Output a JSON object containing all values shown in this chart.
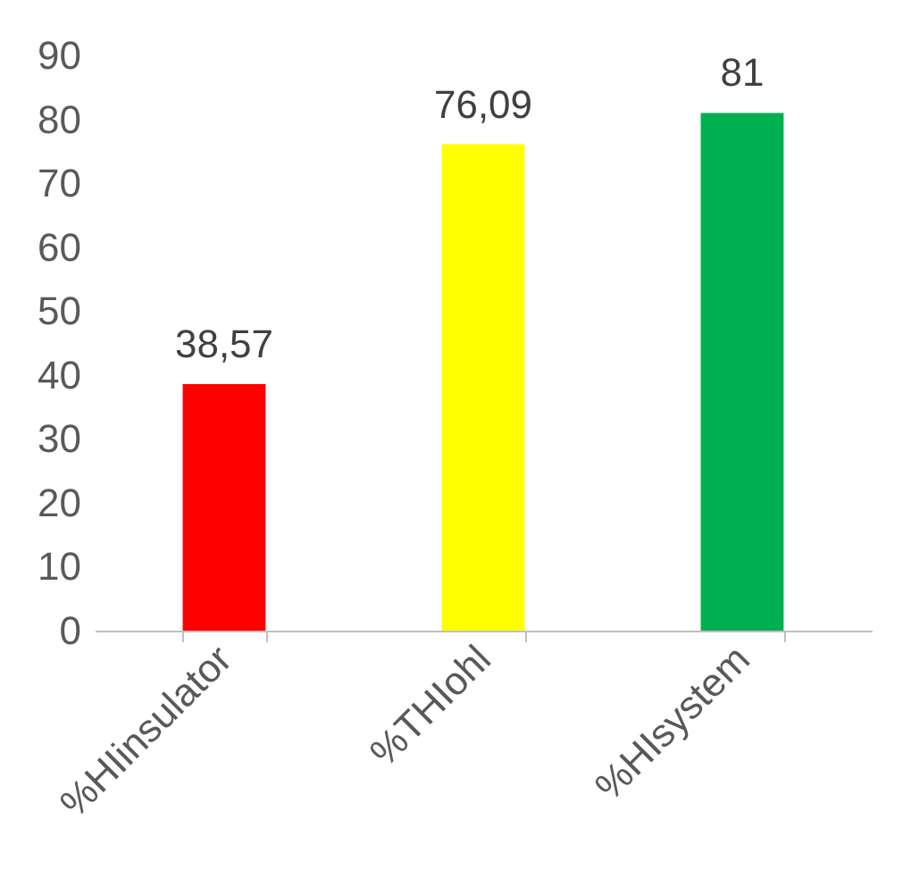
{
  "chart_data": {
    "type": "bar",
    "categories": [
      "%HIinsulator",
      "%THIohl",
      "%HIsystem"
    ],
    "values": [
      38.57,
      76.09,
      81
    ],
    "colors": [
      "#ff0000",
      "#ffff00",
      "#00b050"
    ],
    "value_labels": [
      "38,57",
      "76,09",
      "81"
    ],
    "ylim": [
      0,
      90
    ],
    "yticks": [
      0,
      10,
      20,
      30,
      40,
      50,
      60,
      70,
      80,
      90
    ],
    "grid": false
  }
}
